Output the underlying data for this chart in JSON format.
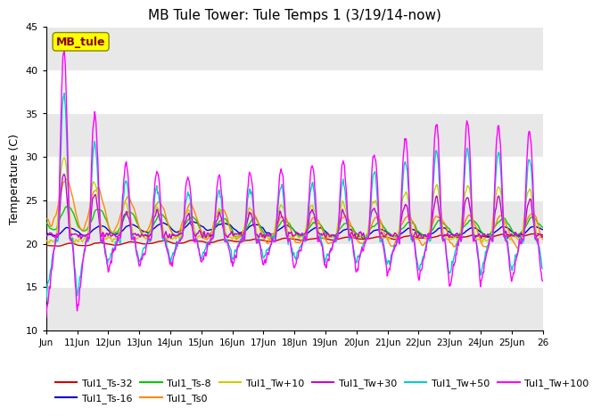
{
  "title": "MB Tule Tower: Tule Temps 1 (3/19/14-now)",
  "ylabel": "Temperature (C)",
  "xlim": [
    0,
    16
  ],
  "ylim": [
    10,
    45
  ],
  "yticks": [
    10,
    15,
    20,
    25,
    30,
    35,
    40,
    45
  ],
  "xtick_labels": [
    "Jun",
    "11Jun",
    "12Jun",
    "13Jun",
    "14Jun",
    "15Jun",
    "16Jun",
    "17Jun",
    "18Jun",
    "19Jun",
    "20Jun",
    "21Jun",
    "22Jun",
    "23Jun",
    "24Jun",
    "25Jun",
    "26"
  ],
  "xtick_positions": [
    0,
    1,
    2,
    3,
    4,
    5,
    6,
    7,
    8,
    9,
    10,
    11,
    12,
    13,
    14,
    15,
    16
  ],
  "legend_label": "MB_tule",
  "background_color": "#ffffff",
  "band_color": "#e8e8e8",
  "series": [
    {
      "name": "Tul1_Ts-32",
      "color": "#cc0000"
    },
    {
      "name": "Tul1_Ts-16",
      "color": "#0000cc"
    },
    {
      "name": "Tul1_Ts-8",
      "color": "#00cc00"
    },
    {
      "name": "Tul1_Ts0",
      "color": "#ff8800"
    },
    {
      "name": "Tul1_Tw+10",
      "color": "#cccc00"
    },
    {
      "name": "Tul1_Tw+30",
      "color": "#cc00cc"
    },
    {
      "name": "Tul1_Tw+50",
      "color": "#00cccc"
    },
    {
      "name": "Tul1_Tw+100",
      "color": "#ff00ff"
    }
  ]
}
